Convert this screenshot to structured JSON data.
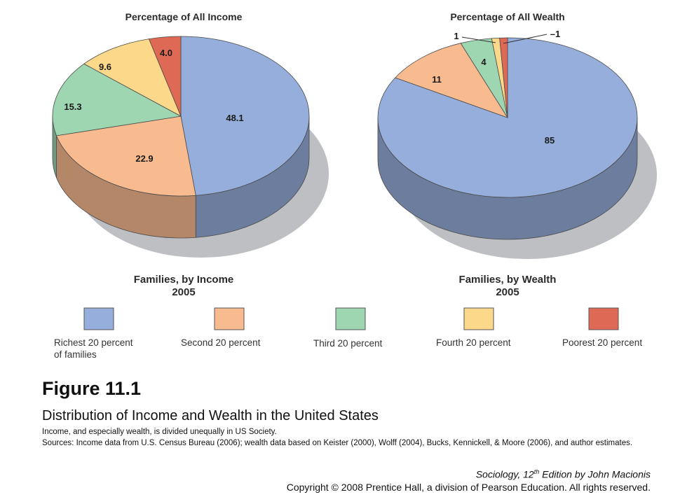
{
  "chart_data": [
    {
      "type": "pie",
      "title": "Percentage of All Income",
      "caption_line1": "Families, by Income",
      "caption_line2": "2005",
      "slices": [
        {
          "label": "Richest 20 percent of families",
          "value": 48.1,
          "value_label": "48.1",
          "color": "#96aedb"
        },
        {
          "label": "Second 20 percent",
          "value": 22.9,
          "value_label": "22.9",
          "color": "#f8bb8f"
        },
        {
          "label": "Third 20 percent",
          "value": 15.3,
          "value_label": "15.3",
          "color": "#9dd6b0"
        },
        {
          "label": "Fourth 20 percent",
          "value": 9.6,
          "value_label": "9.6",
          "color": "#fcd98a"
        },
        {
          "label": "Poorest 20 percent",
          "value": 4.0,
          "value_label": "4.0",
          "color": "#de6a55"
        }
      ]
    },
    {
      "type": "pie",
      "title": "Percentage of All Wealth",
      "caption_line1": "Families, by Wealth",
      "caption_line2": "2005",
      "slices": [
        {
          "label": "Richest 20 percent of families",
          "value": 85,
          "value_label": "85",
          "color": "#96aedb"
        },
        {
          "label": "Second 20 percent",
          "value": 11,
          "value_label": "11",
          "color": "#f8bb8f"
        },
        {
          "label": "Third 20 percent",
          "value": 4,
          "value_label": "4",
          "color": "#9dd6b0"
        },
        {
          "label": "Fourth 20 percent",
          "value": 1,
          "value_label": "1",
          "color": "#fcd98a"
        },
        {
          "label": "Poorest 20 percent",
          "value": -1,
          "value_label": "–1",
          "color": "#de6a55"
        }
      ]
    }
  ],
  "legend": [
    {
      "label_line1": "Richest 20 percent",
      "label_line2": "of families",
      "color": "#96aedb"
    },
    {
      "label_line1": "Second 20 percent",
      "label_line2": "",
      "color": "#f8bb8f"
    },
    {
      "label_line1": "Third 20 percent",
      "label_line2": "",
      "color": "#9dd6b0"
    },
    {
      "label_line1": "Fourth 20 percent",
      "label_line2": "",
      "color": "#fcd98a"
    },
    {
      "label_line1": "Poorest 20 percent",
      "label_line2": "",
      "color": "#de6a55"
    }
  ],
  "figure": {
    "title": "Figure 11.1",
    "subtitle": "Distribution of Income and Wealth in the United States",
    "note": "Income, and especially wealth, is divided unequally in US Society.",
    "sources": "Sources: Income data from U.S. Census Bureau (2006); wealth data based on Keister (2000), Wolff (2004), Bucks, Kennickell, & Moore (2006), and author estimates.",
    "citation_book": "Sociology, 12",
    "citation_sup": "th",
    "citation_rest": " Edition by John Macionis",
    "copyright": "Copyright © 2008 Prentice Hall, a division of Pearson Education. All rights reserved."
  }
}
